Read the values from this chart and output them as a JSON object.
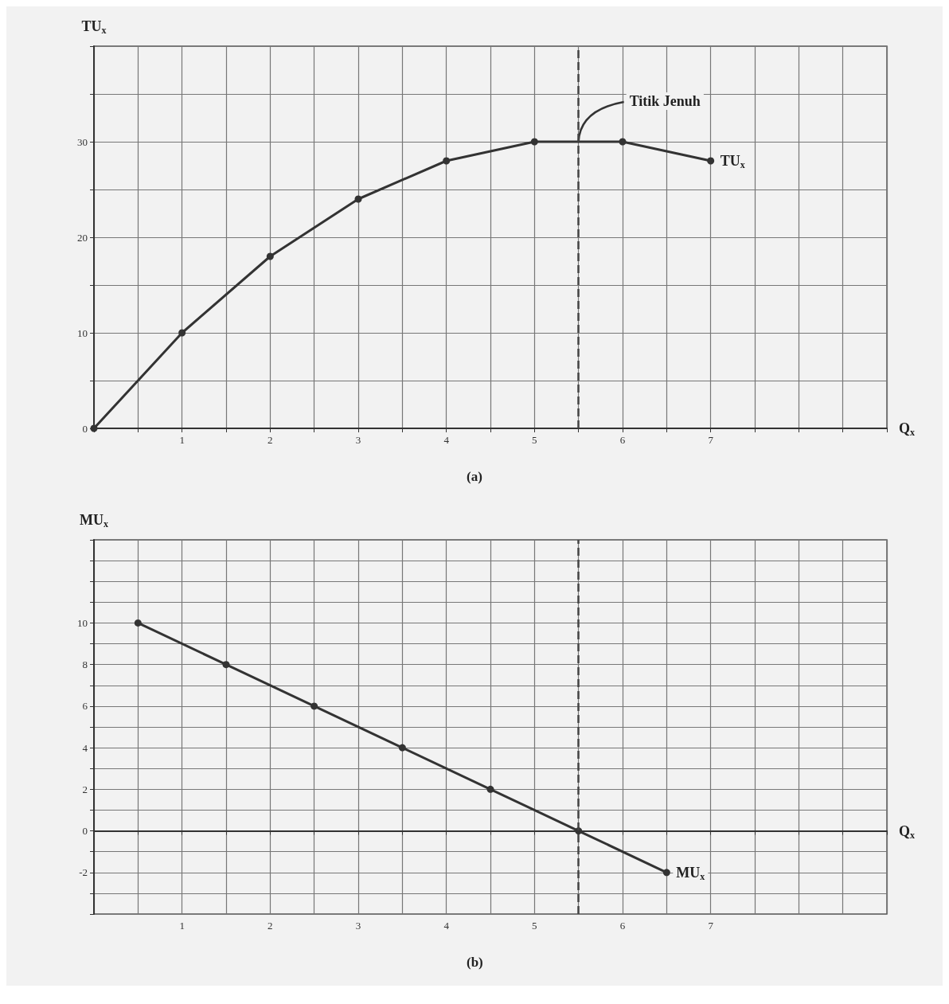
{
  "chart_data": [
    {
      "type": "line",
      "xlabel": "Q$_{x}$",
      "ylabel": "TU$_{x}$",
      "x": [
        0,
        1,
        2,
        3,
        4,
        5,
        6,
        7
      ],
      "series": [
        {
          "name": "TU$_{x}$",
          "color": "#333333",
          "values": [
            0,
            10,
            18,
            24,
            28,
            30,
            30,
            28
          ]
        }
      ],
      "xlim": [
        0,
        9
      ],
      "ylim": [
        0,
        40
      ],
      "xticks": [
        {
          "value": 0,
          "label": null
        },
        {
          "value": 0.5,
          "label": null
        },
        1,
        {
          "value": 1.5,
          "label": null
        },
        2,
        {
          "value": 2.5,
          "label": null
        },
        3,
        {
          "value": 3.5,
          "label": null
        },
        4,
        {
          "value": 4.5,
          "label": null
        },
        5,
        {
          "value": 5.5,
          "label": null
        },
        6,
        {
          "value": 6.5,
          "label": null
        },
        7,
        {
          "value": 7.5,
          "label": null
        },
        {
          "value": 8,
          "label": null
        },
        {
          "value": 8.5,
          "label": null
        },
        {
          "value": 9,
          "label": null
        }
      ],
      "yticks": [
        0,
        {
          "value": 5,
          "label": null
        },
        10,
        {
          "value": 15,
          "label": null
        },
        20,
        {
          "value": 25,
          "label": null
        },
        30,
        {
          "value": 35,
          "label": null
        },
        {
          "value": 40,
          "label": null
        }
      ],
      "grid": true,
      "marker": "circle",
      "line_style": "solid",
      "ref_lines": [
        {
          "axis": "x",
          "value": 5.5,
          "line_style": "dashed",
          "color": "#444444"
        }
      ],
      "annotations": [
        {
          "text": "Titik Jenuh",
          "x": 5.5,
          "y": 30
        },
        "(a)"
      ]
    },
    {
      "type": "line",
      "xlabel": "Q$_{x}$",
      "ylabel": "MU$_{x}$",
      "x": [
        0.5,
        1.5,
        2.5,
        3.5,
        4.5,
        5.5,
        6.5
      ],
      "series": [
        {
          "name": "MU$_{x}$",
          "color": "#333333",
          "values": [
            10,
            8,
            6,
            4,
            2,
            0,
            -2
          ]
        }
      ],
      "xlim": [
        0,
        9
      ],
      "ylim": [
        -4,
        14
      ],
      "xticks": [
        {
          "value": 0,
          "label": null
        },
        {
          "value": 0.5,
          "label": null
        },
        1,
        {
          "value": 1.5,
          "label": null
        },
        2,
        {
          "value": 2.5,
          "label": null
        },
        3,
        {
          "value": 3.5,
          "label": null
        },
        4,
        {
          "value": 4.5,
          "label": null
        },
        5,
        {
          "value": 5.5,
          "label": null
        },
        6,
        {
          "value": 6.5,
          "label": null
        },
        7,
        {
          "value": 7.5,
          "label": null
        },
        {
          "value": 8,
          "label": null
        },
        {
          "value": 8.5,
          "label": null
        },
        {
          "value": 9,
          "label": null
        }
      ],
      "yticks": [
        {
          "value": -4,
          "label": null
        },
        {
          "value": -3,
          "label": null
        },
        -2,
        {
          "value": -1,
          "label": null
        },
        0,
        {
          "value": 1,
          "label": null
        },
        2,
        {
          "value": 3,
          "label": null
        },
        4,
        {
          "value": 5,
          "label": null
        },
        6,
        {
          "value": 7,
          "label": null
        },
        8,
        {
          "value": 9,
          "label": null
        },
        10,
        {
          "value": 11,
          "label": null
        },
        {
          "value": 12,
          "label": null
        },
        {
          "value": 13,
          "label": null
        },
        {
          "value": 14,
          "label": null
        }
      ],
      "grid": true,
      "marker": "circle",
      "line_style": "solid",
      "ref_lines": [
        {
          "axis": "x",
          "value": 5.5,
          "line_style": "dashed",
          "color": "#444444"
        }
      ],
      "annotations": [
        "(b)"
      ]
    }
  ]
}
